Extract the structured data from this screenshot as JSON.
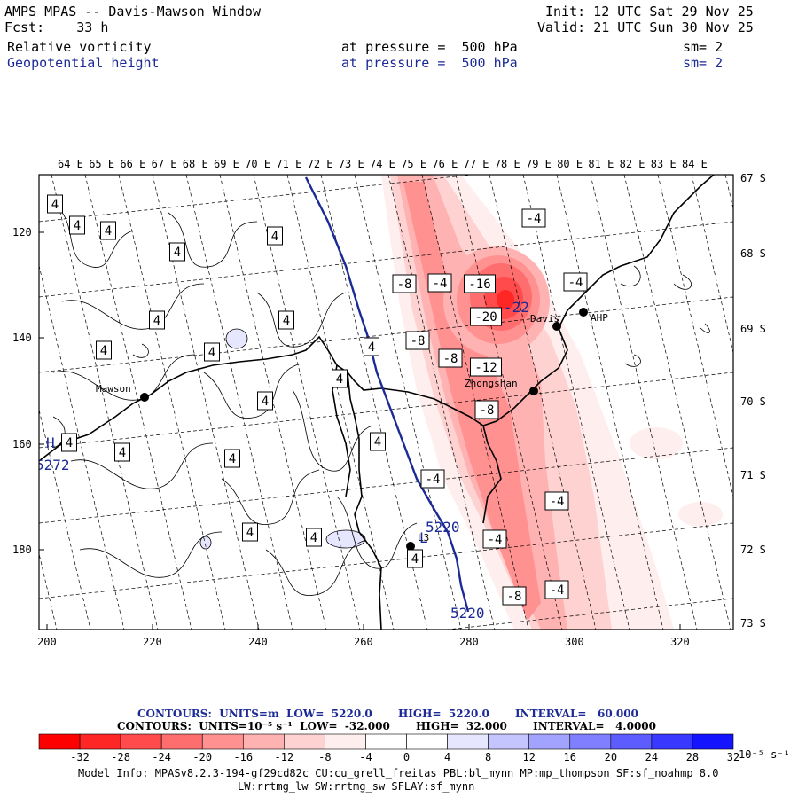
{
  "header": {
    "title": "AMPS MPAS -- Davis-Mawson Window",
    "fcst_label": "Fcst:",
    "fcst_value": "33 h",
    "init": "Init: 12 UTC Sat 29 Nov 25",
    "valid": "Valid: 21 UTC Sun 30 Nov 25",
    "field1": {
      "name": "Relative vorticity",
      "pressure": "at pressure =  500 hPa",
      "sm": "sm= 2"
    },
    "field2": {
      "name": "Geopotential height",
      "pressure": "at pressure =  500 hPa",
      "sm": "sm= 2"
    }
  },
  "map": {
    "lon_labels": [
      "64 E",
      "65 E",
      "66 E",
      "67 E",
      "68 E",
      "69 E",
      "70 E",
      "71 E",
      "72 E",
      "73 E",
      "74 E",
      "75 E",
      "76 E",
      "77 E",
      "78 E",
      "79 E",
      "80 E",
      "81 E",
      "82 E",
      "83 E",
      "84 E"
    ],
    "lat_labels": [
      "67 S",
      "68 S",
      "69 S",
      "70 S",
      "71 S",
      "72 S",
      "73 S"
    ],
    "y_ticks": [
      "120",
      "140",
      "160",
      "180"
    ],
    "x_ticks": [
      "200",
      "220",
      "240",
      "260",
      "280",
      "300",
      "320"
    ],
    "stations": [
      {
        "name": "Mawson",
        "value_id": "mawson"
      },
      {
        "name": "Davis",
        "value_id": "davis"
      },
      {
        "name": "Zhongshan",
        "value_id": "zhongshan"
      },
      {
        "name": "AHP",
        "value_id": "ahp"
      },
      {
        "name": "L3",
        "value_id": "l3"
      }
    ],
    "contour_labels": [
      "4",
      "4",
      "4",
      "4",
      "4",
      "4",
      "4",
      "4",
      "4",
      "4",
      "4",
      "4",
      "4",
      "4",
      "4",
      "4",
      "4",
      "4",
      "4",
      "-4",
      "-4",
      "-4",
      "-4",
      "-4",
      "-4",
      "-8",
      "-8",
      "-8",
      "-8",
      "-8",
      "-12",
      "-16",
      "-20",
      "-4"
    ],
    "height_labels": [
      "5220",
      "5220",
      "5272"
    ],
    "height_markers": [
      "H",
      "L"
    ],
    "peak_label": "-22"
  },
  "legend": {
    "line1": "CONTOURS:  UNITS=m  LOW=  5220.0       HIGH=  5220.0       INTERVAL=   60.000",
    "line2": "CONTOURS:  UNITS=10⁻⁵ s⁻¹  LOW=  -32.000       HIGH=  32.000       INTERVAL=   4.0000",
    "colors": [
      "#ff0000",
      "#ff2626",
      "#ff4b4b",
      "#ff6e6e",
      "#ff9191",
      "#ffb2b2",
      "#ffd2d2",
      "#ffeeee",
      "#ffffff",
      "#ffffff",
      "#e6e6ff",
      "#c4c4ff",
      "#a2a2ff",
      "#7f7fff",
      "#5c5cff",
      "#3838ff",
      "#1414ff"
    ],
    "ticks": [
      "-32",
      "-28",
      "-24",
      "-20",
      "-16",
      "-12",
      "-8",
      "-4",
      "0",
      "4",
      "8",
      "12",
      "16",
      "20",
      "24",
      "28",
      "32"
    ],
    "unit": "10⁻⁵ s⁻¹"
  },
  "model_info": {
    "line1": "Model Info: MPASv8.2.3-194-gf29cd82c CU:cu_grell_freitas PBL:bl_mynn MP:mp_thompson SF:sf_noahmp 8.0",
    "line2": "LW:rrtmg_lw SW:rrtmg_sw SFLAY:sf_mynn"
  }
}
